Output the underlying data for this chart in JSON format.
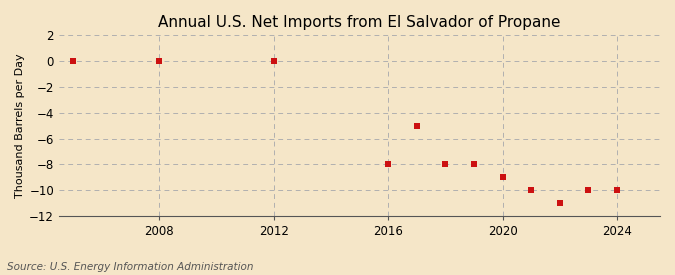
{
  "title": "Annual U.S. Net Imports from El Salvador of Propane",
  "ylabel": "Thousand Barrels per Day",
  "source": "Source: U.S. Energy Information Administration",
  "background_color": "#f5e6c8",
  "plot_background_color": "#f5e6c8",
  "grid_color": "#b0b0b0",
  "data_points": [
    {
      "year": 2005,
      "value": 0
    },
    {
      "year": 2008,
      "value": 0
    },
    {
      "year": 2012,
      "value": 0
    },
    {
      "year": 2016,
      "value": -8
    },
    {
      "year": 2017,
      "value": -5
    },
    {
      "year": 2018,
      "value": -8
    },
    {
      "year": 2019,
      "value": -8
    },
    {
      "year": 2020,
      "value": -9
    },
    {
      "year": 2021,
      "value": -10
    },
    {
      "year": 2022,
      "value": -11
    },
    {
      "year": 2023,
      "value": -10
    },
    {
      "year": 2024,
      "value": -10
    }
  ],
  "marker_color": "#cc1111",
  "marker_size": 4,
  "xlim": [
    2004.5,
    2025.5
  ],
  "ylim": [
    -12,
    2
  ],
  "yticks": [
    2,
    0,
    -2,
    -4,
    -6,
    -8,
    -10,
    -12
  ],
  "xticks": [
    2008,
    2012,
    2016,
    2020,
    2024
  ],
  "title_fontsize": 11,
  "label_fontsize": 8,
  "tick_fontsize": 8.5,
  "source_fontsize": 7.5
}
